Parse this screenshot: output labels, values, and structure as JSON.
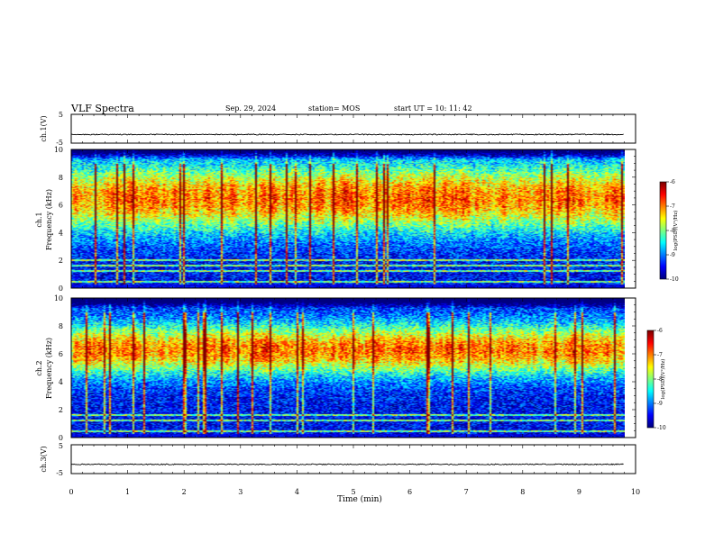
{
  "header": {
    "title": "VLF Spectra",
    "date": "Sep. 29, 2024",
    "station": "station= MOS",
    "start_ut": "start  UT =   10: 11: 42"
  },
  "chart_data": [
    {
      "type": "line",
      "panel": "ch1-waveform",
      "ylabel": "ch.1(V)",
      "ylim": [
        -5,
        5
      ],
      "yticks": [
        "5",
        "-5"
      ],
      "x": [
        0,
        1,
        2,
        3,
        4,
        5,
        6,
        7,
        8,
        9,
        9.8
      ],
      "series": [
        {
          "values": [
            -2,
            -2,
            -2,
            -2,
            -2,
            -2,
            -2,
            -2,
            -2,
            -2,
            -2
          ]
        }
      ]
    },
    {
      "type": "heatmap",
      "panel": "ch1-spectrogram",
      "ylabel": "ch.1\nFrequency (kHz)",
      "ylim": [
        0,
        10
      ],
      "yticks": [
        "0",
        "2",
        "4",
        "6",
        "8",
        "10"
      ],
      "colorbar": {
        "label": "log(PSD)(V²/Hz)",
        "range": [
          -10,
          -6
        ],
        "ticks": [
          "-6",
          "-7",
          "-8",
          "-9",
          "-10"
        ]
      },
      "band_center_khz": 6.5,
      "band_width_khz": 3.2,
      "line_freqs_khz": [
        0.4,
        1.2,
        1.6,
        2.0
      ]
    },
    {
      "type": "heatmap",
      "panel": "ch2-spectrogram",
      "ylabel": "ch.2\nFrequency (kHz)",
      "ylim": [
        0,
        10
      ],
      "yticks": [
        "0",
        "2",
        "4",
        "6",
        "8",
        "10"
      ],
      "colorbar": {
        "label": "log(PSD)(V²/Hz)",
        "range": [
          -10,
          -6
        ],
        "ticks": [
          "-6",
          "-7",
          "-8",
          "-9",
          "-10"
        ]
      },
      "band_center_khz": 6.3,
      "band_width_khz": 2.4,
      "line_freqs_khz": [
        0.4,
        1.2,
        1.6
      ]
    },
    {
      "type": "line",
      "panel": "ch3-waveform",
      "ylabel": "ch.3(V)",
      "ylim": [
        -5,
        5
      ],
      "yticks": [
        "5",
        "-5"
      ],
      "x": [
        0,
        1,
        2,
        3,
        4,
        5,
        6,
        7,
        8,
        9,
        9.8
      ],
      "series": [
        {
          "values": [
            -1.8,
            -1.8,
            -1.8,
            -1.8,
            -1.8,
            -1.8,
            -1.8,
            -1.8,
            -1.8,
            -1.8,
            -1.8
          ]
        }
      ]
    }
  ],
  "x_axis": {
    "label": "Time (min)",
    "xlim": [
      0,
      10
    ],
    "ticks": [
      "0",
      "1",
      "2",
      "3",
      "4",
      "5",
      "6",
      "7",
      "8",
      "9",
      "10"
    ]
  },
  "colors": {
    "axis": "#000000",
    "background": "#ffffff",
    "no_data": "#00008a"
  }
}
